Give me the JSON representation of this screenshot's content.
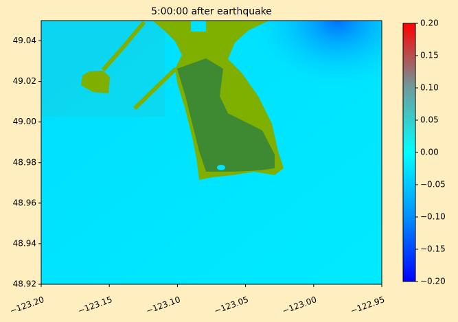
{
  "chart_data": {
    "type": "heatmap",
    "title": "5:00:00 after earthquake",
    "xlim": [
      -123.2,
      -122.95
    ],
    "xticks": [
      {
        "value": -123.2,
        "label": "−123.20"
      },
      {
        "value": -123.15,
        "label": "−123.15"
      },
      {
        "value": -123.1,
        "label": "−123.10"
      },
      {
        "value": -123.05,
        "label": "−123.05"
      },
      {
        "value": -123.0,
        "label": "−123.00"
      },
      {
        "value": -122.95,
        "label": "−122.95"
      }
    ],
    "ylim": [
      48.92,
      49.05
    ],
    "yticks": [
      48.92,
      48.94,
      48.96,
      48.98,
      {
        "value": 49.0,
        "label": "49.00"
      },
      49.02,
      49.04
    ],
    "colorbar": {
      "lim": [
        -0.2,
        0.2
      ],
      "colors": [
        "#0000ff",
        "#0090ff",
        "#00ffff",
        "#6e9c9c",
        "#ff0000"
      ],
      "ticks": [
        {
          "value": -0.2,
          "label": "−0.20"
        },
        {
          "value": -0.15,
          "label": "−0.15"
        },
        {
          "value": -0.1,
          "label": "−0.10"
        },
        {
          "value": -0.05,
          "label": "−0.05"
        },
        {
          "value": 0,
          "label": "0.00"
        },
        0.05,
        {
          "value": 0.1,
          "label": "0.10"
        },
        0.15,
        {
          "value": 0.2,
          "label": "0.20"
        }
      ]
    }
  }
}
